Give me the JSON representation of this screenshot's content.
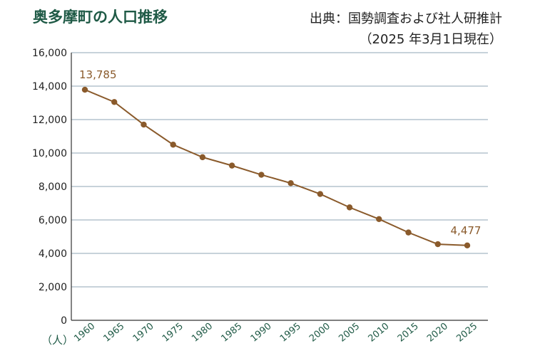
{
  "title": "奥多摩町の人口推移",
  "source": {
    "line1": "出典：国勢調査および社人研推計",
    "line2": "（2025 年3月1日現在）"
  },
  "unit_label": "（人）",
  "colors": {
    "line": "#8a5a2b",
    "grid": "#8fa6b5",
    "title": "#1f5a46"
  },
  "chart_data": {
    "type": "line",
    "title": "奥多摩町の人口推移",
    "x": [
      "1960",
      "1965",
      "1970",
      "1975",
      "1980",
      "1985",
      "1990",
      "1995",
      "2000",
      "2005",
      "2010",
      "2015",
      "2020",
      "2025"
    ],
    "series": [
      {
        "values": [
          13785,
          13050,
          11700,
          10500,
          9750,
          9250,
          8700,
          8200,
          7550,
          6750,
          6050,
          5250,
          4550,
          4477
        ]
      }
    ],
    "ylim": [
      0,
      16000
    ],
    "yticks": [
      "0",
      "2,000",
      "4,000",
      "6,000",
      "8,000",
      "10,000",
      "12,000",
      "14,000",
      "16,000"
    ],
    "data_labels": [
      {
        "index": 0,
        "text": "13,785"
      },
      {
        "index": 13,
        "text": "4,477"
      }
    ],
    "grid": "horizontal"
  }
}
